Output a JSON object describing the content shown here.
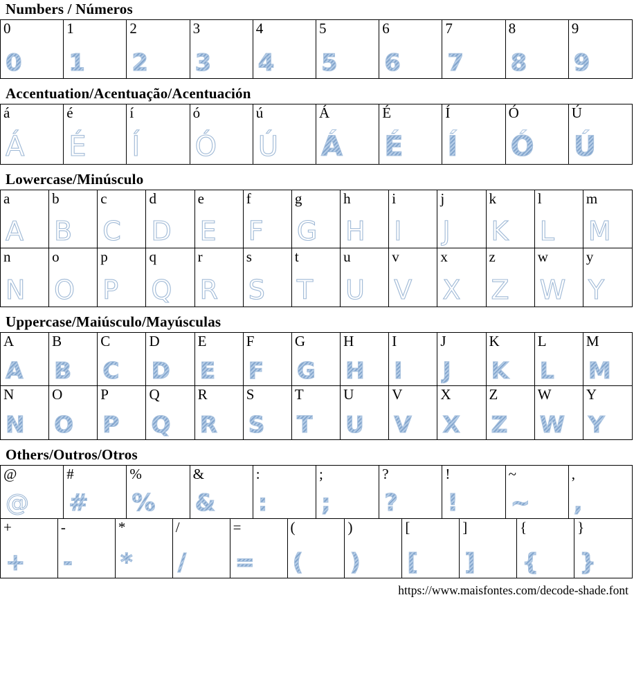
{
  "page": {
    "background": "#ffffff",
    "border_color": "#000000"
  },
  "glyph_colors": {
    "shade_fill": "#9db8d8",
    "shade_stripe_dark": "#84a6cd",
    "shade_stripe_light": "#b7cee8",
    "outline_stroke": "#9fb9d6"
  },
  "footer": {
    "url": "https://www.maisfontes.com/decode-shade.font"
  },
  "sections": [
    {
      "id": "numbers",
      "title": "Numbers / Números",
      "rows": [
        [
          {
            "label": "0",
            "glyph": "0",
            "style": "shade"
          },
          {
            "label": "1",
            "glyph": "1",
            "style": "shade"
          },
          {
            "label": "2",
            "glyph": "2",
            "style": "shade"
          },
          {
            "label": "3",
            "glyph": "3",
            "style": "shade"
          },
          {
            "label": "4",
            "glyph": "4",
            "style": "shade"
          },
          {
            "label": "5",
            "glyph": "5",
            "style": "shade"
          },
          {
            "label": "6",
            "glyph": "6",
            "style": "shade"
          },
          {
            "label": "7",
            "glyph": "7",
            "style": "shade"
          },
          {
            "label": "8",
            "glyph": "8",
            "style": "shade"
          },
          {
            "label": "9",
            "glyph": "9",
            "style": "shade"
          }
        ]
      ]
    },
    {
      "id": "accent",
      "title": "Accentuation/Acentuação/Acentuación",
      "rows": [
        [
          {
            "label": "á",
            "glyph": "Á",
            "style": "outline"
          },
          {
            "label": "é",
            "glyph": "É",
            "style": "outline"
          },
          {
            "label": "í",
            "glyph": "Í",
            "style": "outline"
          },
          {
            "label": "ó",
            "glyph": "Ó",
            "style": "outline"
          },
          {
            "label": "ú",
            "glyph": "Ú",
            "style": "outline"
          },
          {
            "label": "Á",
            "glyph": "Á",
            "style": "shade"
          },
          {
            "label": "É",
            "glyph": "É",
            "style": "shade"
          },
          {
            "label": "Í",
            "glyph": "Í",
            "style": "shade"
          },
          {
            "label": "Ó",
            "glyph": "Ó",
            "style": "shade"
          },
          {
            "label": "Ú",
            "glyph": "Ú",
            "style": "shade"
          }
        ]
      ]
    },
    {
      "id": "lowercase",
      "title": "Lowercase/Minúsculo",
      "rows": [
        [
          {
            "label": "a",
            "glyph": "A",
            "style": "outline"
          },
          {
            "label": "b",
            "glyph": "B",
            "style": "outline"
          },
          {
            "label": "c",
            "glyph": "C",
            "style": "outline"
          },
          {
            "label": "d",
            "glyph": "D",
            "style": "outline"
          },
          {
            "label": "e",
            "glyph": "E",
            "style": "outline"
          },
          {
            "label": "f",
            "glyph": "F",
            "style": "outline"
          },
          {
            "label": "g",
            "glyph": "G",
            "style": "outline"
          },
          {
            "label": "h",
            "glyph": "H",
            "style": "outline"
          },
          {
            "label": "i",
            "glyph": "I",
            "style": "outline"
          },
          {
            "label": "j",
            "glyph": "J",
            "style": "outline"
          },
          {
            "label": "k",
            "glyph": "K",
            "style": "outline"
          },
          {
            "label": "l",
            "glyph": "L",
            "style": "outline"
          },
          {
            "label": "m",
            "glyph": "M",
            "style": "outline"
          }
        ],
        [
          {
            "label": "n",
            "glyph": "N",
            "style": "outline"
          },
          {
            "label": "o",
            "glyph": "O",
            "style": "outline"
          },
          {
            "label": "p",
            "glyph": "P",
            "style": "outline"
          },
          {
            "label": "q",
            "glyph": "Q",
            "style": "outline"
          },
          {
            "label": "r",
            "glyph": "R",
            "style": "outline"
          },
          {
            "label": "s",
            "glyph": "S",
            "style": "outline"
          },
          {
            "label": "t",
            "glyph": "T",
            "style": "outline"
          },
          {
            "label": "u",
            "glyph": "U",
            "style": "outline"
          },
          {
            "label": "v",
            "glyph": "V",
            "style": "outline"
          },
          {
            "label": "x",
            "glyph": "X",
            "style": "outline"
          },
          {
            "label": "z",
            "glyph": "Z",
            "style": "outline"
          },
          {
            "label": "w",
            "glyph": "W",
            "style": "outline"
          },
          {
            "label": "y",
            "glyph": "Y",
            "style": "outline"
          }
        ]
      ]
    },
    {
      "id": "uppercase",
      "title": "Uppercase/Maiúsculo/Mayúsculas",
      "rows": [
        [
          {
            "label": "A",
            "glyph": "A",
            "style": "shade"
          },
          {
            "label": "B",
            "glyph": "B",
            "style": "shade"
          },
          {
            "label": "C",
            "glyph": "C",
            "style": "shade"
          },
          {
            "label": "D",
            "glyph": "D",
            "style": "shade"
          },
          {
            "label": "E",
            "glyph": "E",
            "style": "shade"
          },
          {
            "label": "F",
            "glyph": "F",
            "style": "shade"
          },
          {
            "label": "G",
            "glyph": "G",
            "style": "shade"
          },
          {
            "label": "H",
            "glyph": "H",
            "style": "shade"
          },
          {
            "label": "I",
            "glyph": "I",
            "style": "shade"
          },
          {
            "label": "J",
            "glyph": "J",
            "style": "shade"
          },
          {
            "label": "K",
            "glyph": "K",
            "style": "shade"
          },
          {
            "label": "L",
            "glyph": "L",
            "style": "shade"
          },
          {
            "label": "M",
            "glyph": "M",
            "style": "shade"
          }
        ],
        [
          {
            "label": "N",
            "glyph": "N",
            "style": "shade"
          },
          {
            "label": "O",
            "glyph": "O",
            "style": "shade"
          },
          {
            "label": "P",
            "glyph": "P",
            "style": "shade"
          },
          {
            "label": "Q",
            "glyph": "Q",
            "style": "shade"
          },
          {
            "label": "R",
            "glyph": "R",
            "style": "shade"
          },
          {
            "label": "S",
            "glyph": "S",
            "style": "shade"
          },
          {
            "label": "T",
            "glyph": "T",
            "style": "shade"
          },
          {
            "label": "U",
            "glyph": "U",
            "style": "shade"
          },
          {
            "label": "V",
            "glyph": "V",
            "style": "shade"
          },
          {
            "label": "X",
            "glyph": "X",
            "style": "shade"
          },
          {
            "label": "Z",
            "glyph": "Z",
            "style": "shade"
          },
          {
            "label": "W",
            "glyph": "W",
            "style": "shade"
          },
          {
            "label": "Y",
            "glyph": "Y",
            "style": "shade"
          }
        ]
      ]
    },
    {
      "id": "others",
      "title": "Others/Outros/Otros",
      "rows": [
        [
          {
            "label": "@",
            "glyph": "@",
            "style": "outline"
          },
          {
            "label": "#",
            "glyph": "#",
            "style": "shade"
          },
          {
            "label": "%",
            "glyph": "%",
            "style": "shade"
          },
          {
            "label": "&",
            "glyph": "&",
            "style": "shade"
          },
          {
            "label": ":",
            "glyph": ":",
            "style": "shade"
          },
          {
            "label": ";",
            "glyph": ";",
            "style": "shade"
          },
          {
            "label": "?",
            "glyph": "?",
            "style": "shade"
          },
          {
            "label": "!",
            "glyph": "!",
            "style": "shade"
          },
          {
            "label": "~",
            "glyph": "~",
            "style": "shade"
          },
          {
            "label": ",",
            "glyph": ",",
            "style": "shade"
          }
        ],
        [
          {
            "label": "+",
            "glyph": "+",
            "style": "shade"
          },
          {
            "label": "-",
            "glyph": "-",
            "style": "shade"
          },
          {
            "label": "*",
            "glyph": "*",
            "style": "shade"
          },
          {
            "label": "/",
            "glyph": "/",
            "style": "shade"
          },
          {
            "label": "=",
            "glyph": "=",
            "style": "shade"
          },
          {
            "label": "(",
            "glyph": "(",
            "style": "shade"
          },
          {
            "label": ")",
            "glyph": ")",
            "style": "shade"
          },
          {
            "label": "[",
            "glyph": "[",
            "style": "shade"
          },
          {
            "label": "]",
            "glyph": "]",
            "style": "shade"
          },
          {
            "label": "{",
            "glyph": "{",
            "style": "shade"
          },
          {
            "label": "}",
            "glyph": "}",
            "style": "shade"
          }
        ]
      ]
    }
  ]
}
